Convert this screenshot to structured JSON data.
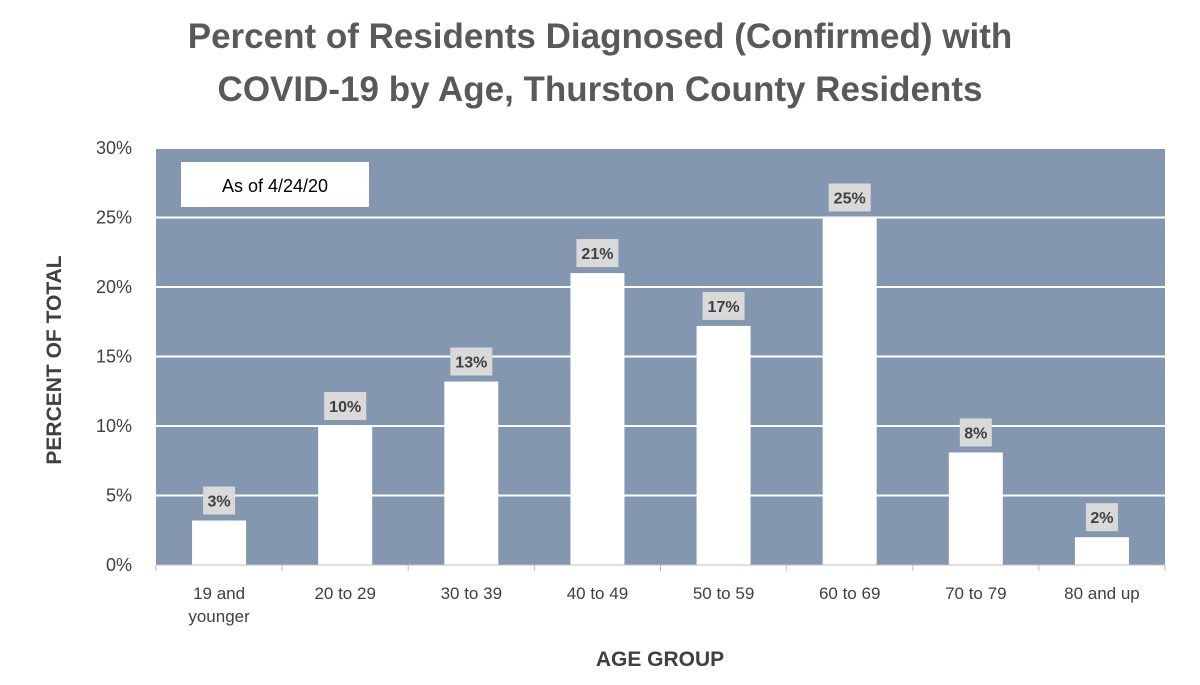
{
  "chart_data": {
    "type": "bar",
    "title_lines": [
      "Percent of Residents Diagnosed (Confirmed) with",
      "COVID-19 by Age, Thurston County Residents"
    ],
    "xlabel": "AGE GROUP",
    "ylabel": "PERCENT OF TOTAL",
    "annotation": "As of 4/24/20",
    "categories": [
      [
        "19 and",
        "younger"
      ],
      [
        "20 to 29"
      ],
      [
        "30 to 39"
      ],
      [
        "40 to 49"
      ],
      [
        "50 to 59"
      ],
      [
        "60 to 69"
      ],
      [
        "70 to 79"
      ],
      [
        "80 and up"
      ]
    ],
    "values": [
      3.2,
      10,
      13.2,
      21,
      17.2,
      25,
      8.1,
      2
    ],
    "data_labels": [
      "3%",
      "10%",
      "13%",
      "21%",
      "17%",
      "25%",
      "8%",
      "2%"
    ],
    "ylim": [
      0,
      30
    ],
    "yticks": [
      "0%",
      "5%",
      "10%",
      "15%",
      "20%",
      "25%",
      "30%"
    ],
    "grid": true,
    "colors": {
      "plot_background": "#8497b0",
      "bar": "#ffffff",
      "gridline": "#ffffff",
      "label_box": "#d9d9d9",
      "title": "#595959",
      "text": "#404040"
    }
  }
}
